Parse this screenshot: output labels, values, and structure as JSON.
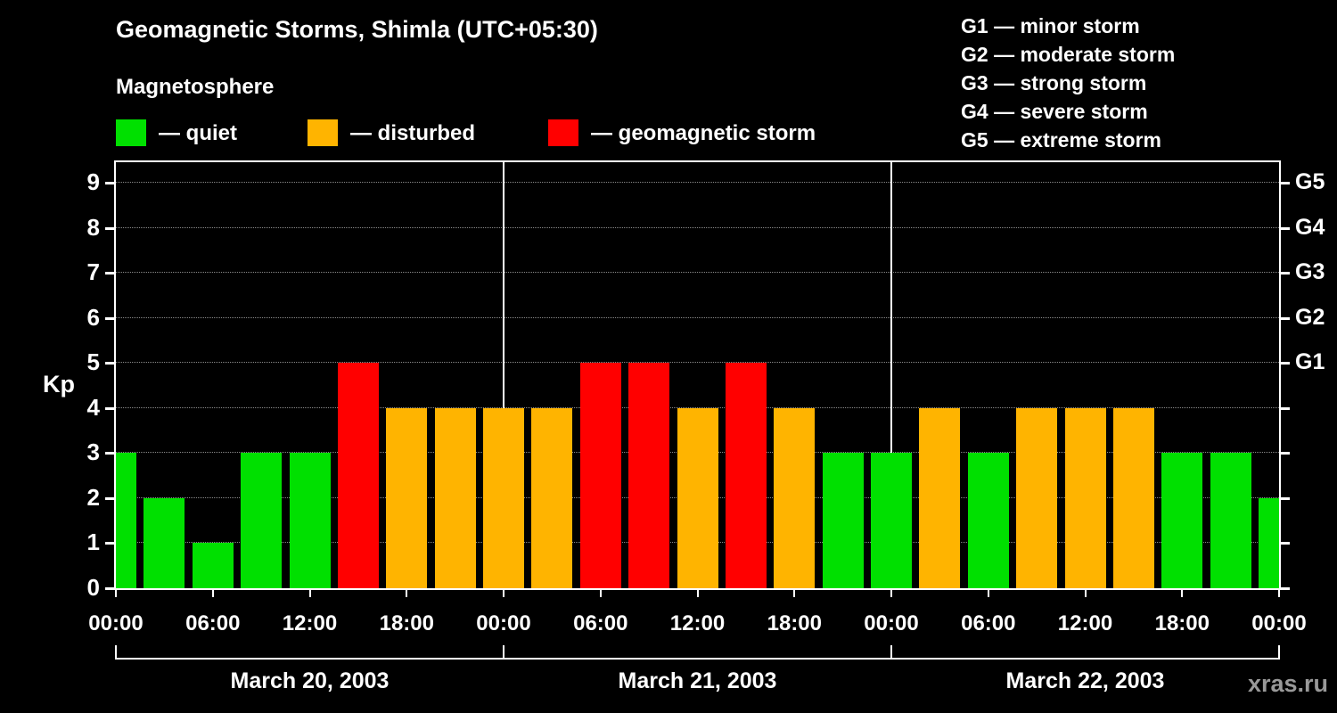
{
  "title": "Geomagnetic Storms, Shimla (UTC+05:30)",
  "magnetosphere_legend": {
    "heading": "Magnetosphere",
    "items": [
      {
        "key": "quiet",
        "label": "— quiet",
        "color": "#00e000"
      },
      {
        "key": "disturbed",
        "label": "— disturbed",
        "color": "#ffb400"
      },
      {
        "key": "storm",
        "label": "— geomagnetic storm",
        "color": "#ff0000"
      }
    ]
  },
  "storm_scale_legend": {
    "items": [
      "G1 — minor storm",
      "G2 — moderate storm",
      "G3 — strong storm",
      "G4 — severe storm",
      "G5 — extreme storm"
    ]
  },
  "watermark": "xras.ru",
  "chart_data": {
    "type": "bar",
    "title": "Geomagnetic Storms, Shimla (UTC+05:30)",
    "ylabel": "Kp",
    "ylim": [
      0,
      9
    ],
    "yticks": [
      0,
      1,
      2,
      3,
      4,
      5,
      6,
      7,
      8,
      9
    ],
    "right_axis": [
      {
        "kp": 5,
        "label": "G1"
      },
      {
        "kp": 6,
        "label": "G2"
      },
      {
        "kp": 7,
        "label": "G3"
      },
      {
        "kp": 8,
        "label": "G4"
      },
      {
        "kp": 9,
        "label": "G5"
      }
    ],
    "x_tick_labels": [
      "00:00",
      "06:00",
      "12:00",
      "18:00",
      "00:00",
      "06:00",
      "12:00",
      "18:00",
      "00:00",
      "06:00",
      "12:00",
      "18:00",
      "00:00"
    ],
    "sample_interval_hours": 3,
    "days": [
      {
        "label": "March 20, 2003",
        "kp": [
          3,
          2,
          1,
          3,
          3,
          5,
          4,
          4
        ]
      },
      {
        "label": "March 21, 2003",
        "kp": [
          4,
          4,
          5,
          5,
          4,
          5,
          4,
          3
        ]
      },
      {
        "label": "March 22, 2003",
        "kp": [
          3,
          4,
          3,
          4,
          4,
          4,
          3,
          3
        ]
      }
    ],
    "next_day_first_kp": 2,
    "color_thresholds": {
      "quiet_max": 3,
      "disturbed_max": 4
    },
    "colors": {
      "quiet": "#00e000",
      "disturbed": "#ffb400",
      "storm": "#ff0000"
    },
    "grid": "dotted horizontal lines at integer Kp levels",
    "legend_position": "top"
  }
}
